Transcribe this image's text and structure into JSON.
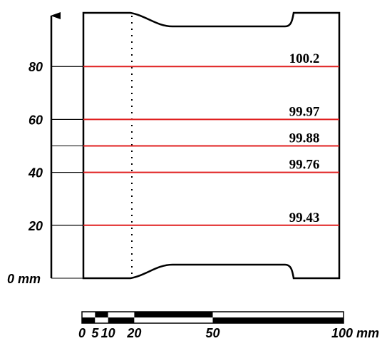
{
  "axis": {
    "unit_label": "0 mm",
    "ticks": [
      {
        "value": 20,
        "label": "20"
      },
      {
        "value": 40,
        "label": "40"
      },
      {
        "value": 60,
        "label": "60"
      },
      {
        "value": 80,
        "label": "80"
      }
    ]
  },
  "measurements": [
    {
      "position": 20,
      "value": "99.43"
    },
    {
      "position": 40,
      "value": "99.76"
    },
    {
      "position": 50,
      "value": "99.88"
    },
    {
      "position": 60,
      "value": "99.97"
    },
    {
      "position": 80,
      "value": "100.2"
    }
  ],
  "scale_bar": {
    "labels": [
      {
        "value": 0,
        "label": "0"
      },
      {
        "value": 5,
        "label": "5"
      },
      {
        "value": 10,
        "label": "10"
      },
      {
        "value": 20,
        "label": "20"
      },
      {
        "value": 50,
        "label": "50"
      },
      {
        "value": 100,
        "label": "100 mm"
      }
    ]
  },
  "colors": {
    "measurement_line": "#e02020",
    "outline": "#000000"
  }
}
